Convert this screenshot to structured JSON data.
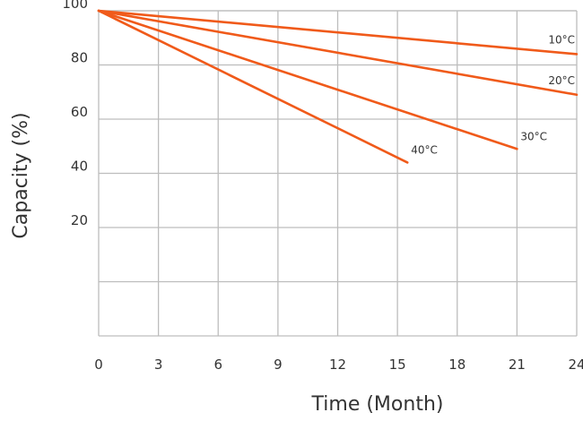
{
  "chart_data": {
    "type": "line",
    "title": "",
    "xlabel": "Time (Month)",
    "ylabel": "Capacity (%)",
    "xlim": [
      0,
      24
    ],
    "ylim": [
      -20,
      100
    ],
    "x_ticks": [
      0,
      3,
      6,
      9,
      12,
      15,
      18,
      21,
      24
    ],
    "x_tick_labels": [
      "0",
      "3",
      "6",
      "9",
      "12",
      "15",
      "18",
      "21",
      "24"
    ],
    "y_ticks": [
      20,
      40,
      60,
      80,
      100
    ],
    "y_tick_labels": [
      "20",
      "40",
      "60",
      "80",
      "100"
    ],
    "grid": true,
    "legend": "none (inline series labels)",
    "line_color": "#F05A1A",
    "grid_color": "#BDBDBD",
    "series": [
      {
        "name": "10°C",
        "x": [
          0,
          24
        ],
        "y": [
          100,
          84
        ]
      },
      {
        "name": "20°C",
        "x": [
          0,
          24
        ],
        "y": [
          100,
          69
        ]
      },
      {
        "name": "30°C",
        "x": [
          0,
          21
        ],
        "y": [
          100,
          49
        ]
      },
      {
        "name": "40°C",
        "x": [
          0,
          15.5
        ],
        "y": [
          100,
          44
        ]
      }
    ]
  }
}
